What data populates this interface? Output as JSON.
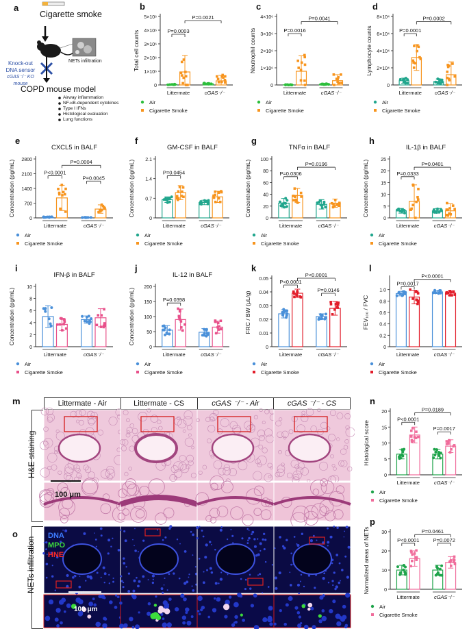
{
  "colors": {
    "green": "#2dbe3c",
    "orange": "#f7941d",
    "teal": "#21a68d",
    "blue": "#4a90d9",
    "pink": "#e8508a",
    "red": "#e21d2a",
    "lightpink": "#f06c9b",
    "darkgreen": "#1ea34a",
    "navy": "#233f8f"
  },
  "schematic": {
    "label": "a",
    "title": "Cigarette smoke",
    "knockout": [
      "Knock-out",
      "DNA sensor"
    ],
    "ko_mouse": "cGAS⁻/⁻ KO mouse",
    "nets": "NETs infiltration",
    "model": "COPD mouse model",
    "bullets": [
      "Airway inflammation",
      "NF-κB-dependent cytokines",
      "Type I IFNs",
      "Histological evaluation",
      "Lung functions"
    ]
  },
  "groups": [
    "Littermate",
    "cGAS⁻/⁻"
  ],
  "legend_air": "Air",
  "legend_cs": "Cigarette Smoke",
  "chart_data": [
    {
      "id": "b",
      "type": "bar",
      "title": "",
      "ylabel": "Total cell counts",
      "ylim": [
        0,
        5000000
      ],
      "ticks": [
        "0",
        "1×10⁶",
        "2×10⁶",
        "3×10⁶",
        "4×10⁶",
        "5×10⁶"
      ],
      "tickvals": [
        0,
        1000000,
        2000000,
        3000000,
        4000000,
        5000000
      ],
      "colors": [
        "green",
        "orange"
      ],
      "values": [
        40000,
        950000,
        90000,
        300000
      ],
      "err": [
        30000,
        1200000,
        50000,
        400000
      ],
      "pvals": [
        {
          "a": 0,
          "b": 1,
          "text": "P=0.0003",
          "level": 3700000
        },
        {
          "a": 1,
          "b": 3,
          "text": "P=0.0021",
          "level": 4700000
        }
      ]
    },
    {
      "id": "c",
      "type": "bar",
      "title": "",
      "ylabel": "Neutrophil counts",
      "ylim": [
        0,
        4000000
      ],
      "ticks": [
        "0",
        "1×10⁶",
        "2×10⁶",
        "3×10⁶",
        "4×10⁶"
      ],
      "tickvals": [
        0,
        1000000,
        2000000,
        3000000,
        4000000
      ],
      "colors": [
        "green",
        "orange"
      ],
      "values": [
        10000,
        800000,
        50000,
        250000
      ],
      "err": [
        10000,
        900000,
        30000,
        350000
      ],
      "pvals": [
        {
          "a": 0,
          "b": 1,
          "text": "P=0.0016",
          "level": 3000000
        },
        {
          "a": 1,
          "b": 3,
          "text": "P=0.0041",
          "level": 3700000
        }
      ]
    },
    {
      "id": "d",
      "type": "bar",
      "title": "",
      "ylabel": "Lymphocyte counts",
      "ylim": [
        0,
        80000
      ],
      "ticks": [
        "0",
        "2×10⁴",
        "4×10⁴",
        "6×10⁴",
        "8×10⁴"
      ],
      "tickvals": [
        0,
        20000,
        40000,
        60000,
        80000
      ],
      "colors": [
        "teal",
        "orange"
      ],
      "values": [
        5000,
        32000,
        4000,
        12000
      ],
      "err": [
        3000,
        15000,
        3000,
        15000
      ],
      "pvals": [
        {
          "a": 0,
          "b": 1,
          "text": "P=0.0001",
          "level": 60000
        },
        {
          "a": 1,
          "b": 3,
          "text": "P=0.0002",
          "level": 74000
        }
      ]
    },
    {
      "id": "e",
      "type": "bar",
      "title": "CXCL5 in BALF",
      "ylabel": "Concentration (pg/mL)",
      "ylim": [
        0,
        2800
      ],
      "ticks": [
        "0",
        "700",
        "1400",
        "2100",
        "2800"
      ],
      "tickvals": [
        0,
        700,
        1400,
        2100,
        2800
      ],
      "colors": [
        "blue",
        "orange"
      ],
      "values": [
        30,
        950,
        20,
        420
      ],
      "err": [
        20,
        600,
        10,
        200
      ],
      "pvals": [
        {
          "a": 0,
          "b": 1,
          "text": "P<0.0001",
          "level": 2000
        },
        {
          "a": 2,
          "b": 3,
          "text": "P=0.0045",
          "level": 1750
        },
        {
          "a": 1,
          "b": 3,
          "text": "P=0.0004",
          "level": 2500
        }
      ]
    },
    {
      "id": "f",
      "type": "bar",
      "title": "GM-CSF in BALF",
      "ylabel": "Concentration (pg/mL)",
      "ylim": [
        0,
        2.1
      ],
      "ticks": [
        "0",
        "0.7",
        "1.4",
        "2.1"
      ],
      "tickvals": [
        0,
        0.7,
        1.4,
        2.1
      ],
      "colors": [
        "teal",
        "orange"
      ],
      "values": [
        0.65,
        0.9,
        0.55,
        0.75
      ],
      "err": [
        0.1,
        0.25,
        0.08,
        0.2
      ],
      "pvals": [
        {
          "a": 0,
          "b": 1,
          "text": "P=0.0454",
          "level": 1.5
        }
      ]
    },
    {
      "id": "g",
      "type": "bar",
      "title": "TNFα in BALF",
      "ylabel": "Concentration (pg/mL)",
      "ylim": [
        0,
        100
      ],
      "ticks": [
        "0",
        "20",
        "40",
        "60",
        "80",
        "100"
      ],
      "tickvals": [
        0,
        20,
        40,
        60,
        80,
        100
      ],
      "colors": [
        "teal",
        "orange"
      ],
      "values": [
        25,
        38,
        23,
        25
      ],
      "err": [
        8,
        12,
        8,
        7
      ],
      "pvals": [
        {
          "a": 0,
          "b": 1,
          "text": "P=0.0306",
          "level": 70
        },
        {
          "a": 1,
          "b": 3,
          "text": "P=0.0196",
          "level": 86
        }
      ]
    },
    {
      "id": "h",
      "type": "bar",
      "title": "IL-1β in BALF",
      "ylabel": "Concentration (pg/mL)",
      "ylim": [
        0,
        25
      ],
      "ticks": [
        "0",
        "5",
        "10",
        "15",
        "20",
        "25"
      ],
      "tickvals": [
        0,
        5,
        10,
        15,
        20,
        25
      ],
      "colors": [
        "teal",
        "orange"
      ],
      "values": [
        3,
        7,
        3,
        3
      ],
      "err": [
        1,
        7,
        1,
        3
      ],
      "pvals": [
        {
          "a": 0,
          "b": 1,
          "text": "P=0.0333",
          "level": 17.5
        },
        {
          "a": 1,
          "b": 3,
          "text": "P=0.0401",
          "level": 21.5
        }
      ]
    },
    {
      "id": "i",
      "type": "bar",
      "title": "IFN-β in BALF",
      "ylabel": "Concentration (pg/mL)",
      "ylim": [
        0,
        10
      ],
      "ticks": [
        "0",
        "2",
        "4",
        "6",
        "8",
        "10"
      ],
      "tickvals": [
        0,
        2,
        4,
        6,
        8,
        10
      ],
      "colors": [
        "blue",
        "pink"
      ],
      "values": [
        5,
        3.7,
        4.5,
        4.8
      ],
      "err": [
        1.8,
        1,
        0.6,
        1.5
      ],
      "pvals": []
    },
    {
      "id": "j",
      "type": "bar",
      "title": "IL-12 in BALF",
      "ylabel": "Concentration (pg/mL)",
      "ylim": [
        0,
        200
      ],
      "ticks": [
        "0",
        "50",
        "100",
        "150",
        "200"
      ],
      "tickvals": [
        0,
        50,
        100,
        150,
        200
      ],
      "colors": [
        "blue",
        "pink"
      ],
      "values": [
        55,
        90,
        48,
        65
      ],
      "err": [
        15,
        35,
        12,
        20
      ],
      "pvals": [
        {
          "a": 0,
          "b": 1,
          "text": "P=0.0398",
          "level": 145
        }
      ]
    },
    {
      "id": "k",
      "type": "bar",
      "title": "",
      "ylabel": "FRC / BW (μL/g)",
      "ylim": [
        0,
        0.05
      ],
      "ticks": [
        "0",
        "0.01",
        "0.02",
        "0.03",
        "0.04",
        "0.05"
      ],
      "tickvals": [
        0,
        0.01,
        0.02,
        0.03,
        0.04,
        0.05
      ],
      "colors": [
        "blue",
        "red"
      ],
      "values": [
        0.024,
        0.039,
        0.022,
        0.028
      ],
      "err": [
        0.003,
        0.003,
        0.002,
        0.005
      ],
      "pvals": [
        {
          "a": 0,
          "b": 1,
          "text": "P<0.0001",
          "level": 0.045
        },
        {
          "a": 2,
          "b": 3,
          "text": "P=0.0146",
          "level": 0.039
        },
        {
          "a": 1,
          "b": 3,
          "text": "P<0.0001",
          "level": 0.05
        }
      ]
    },
    {
      "id": "l",
      "type": "bar",
      "title": "",
      "ylabel": "FEV₁₀₀ / FVC",
      "ylim": [
        0,
        1.2
      ],
      "ticks": [
        "0",
        "0.2",
        "0.4",
        "0.6",
        "0.8",
        "1.0"
      ],
      "tickvals": [
        0,
        0.2,
        0.4,
        0.6,
        0.8,
        1.0
      ],
      "colors": [
        "blue",
        "red"
      ],
      "values": [
        0.93,
        0.87,
        0.96,
        0.94
      ],
      "err": [
        0.04,
        0.12,
        0.03,
        0.04
      ],
      "pvals": [
        {
          "a": 0,
          "b": 1,
          "text": "P=0.0017",
          "level": 1.05
        },
        {
          "a": 1,
          "b": 3,
          "text": "P<0.0001",
          "level": 1.18
        }
      ]
    },
    {
      "id": "n",
      "type": "bar",
      "title": "",
      "ylabel": "Histological score",
      "ylim": [
        0,
        20
      ],
      "ticks": [
        "0",
        "5",
        "10",
        "15",
        "20"
      ],
      "tickvals": [
        0,
        5,
        10,
        15,
        20
      ],
      "colors": [
        "darkgreen",
        "lightpink"
      ],
      "values": [
        6.5,
        12.5,
        6.5,
        9
      ],
      "err": [
        1.5,
        2.5,
        1.5,
        2
      ],
      "pvals": [
        {
          "a": 0,
          "b": 1,
          "text": "P<0.0001",
          "level": 16.5
        },
        {
          "a": 2,
          "b": 3,
          "text": "P=0.0017",
          "level": 13.5
        },
        {
          "a": 1,
          "b": 3,
          "text": "P=0.0189",
          "level": 19.5
        }
      ]
    },
    {
      "id": "p",
      "type": "bar",
      "title": "",
      "ylabel": "Normalized areas of NETs",
      "ylim": [
        0,
        30
      ],
      "ticks": [
        "0",
        "10",
        "20",
        "30"
      ],
      "tickvals": [
        0,
        10,
        20,
        30
      ],
      "colors": [
        "darkgreen",
        "lightpink"
      ],
      "values": [
        10,
        16,
        10,
        14
      ],
      "err": [
        2.5,
        4,
        2.5,
        3
      ],
      "pvals": [
        {
          "a": 0,
          "b": 1,
          "text": "P<0.0001",
          "level": 24
        },
        {
          "a": 2,
          "b": 3,
          "text": "P=0.0072",
          "level": 24
        },
        {
          "a": 1,
          "b": 3,
          "text": "P=0.0461",
          "level": 28.5
        }
      ]
    }
  ],
  "histology": {
    "label_m": "m",
    "label_o": "o",
    "columns": [
      "Littermate - Air",
      "Littermate - CS",
      "cGAS ⁻/⁻ - Air",
      "cGAS ⁻/⁻ - CS"
    ],
    "row_he": "H&E staining",
    "row_nets": "NETs infiltration",
    "scale": "100 μm",
    "stain_dna": "DNA",
    "stain_mpo": "MPO",
    "stain_hne": "HNE"
  }
}
